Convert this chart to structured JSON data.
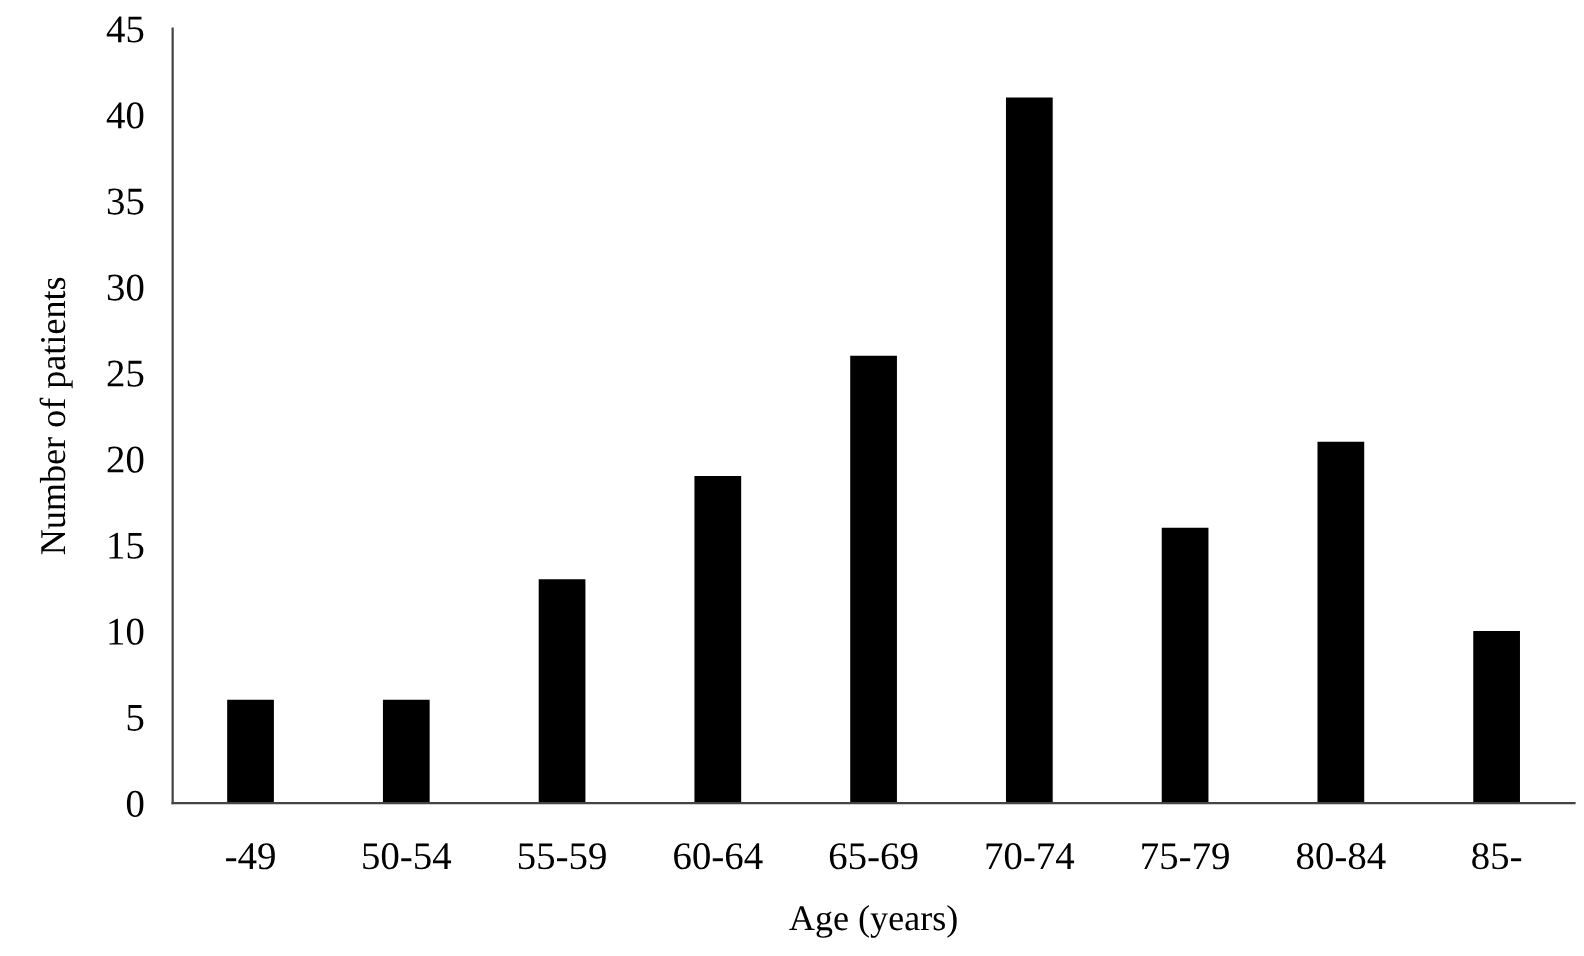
{
  "chart_data": {
    "type": "bar",
    "xlabel": "Age (years)",
    "ylabel": "Number of patients",
    "categories": [
      "-49",
      "50-54",
      "55-59",
      "60-64",
      "65-69",
      "70-74",
      "75-79",
      "80-84",
      "85-"
    ],
    "values": [
      6,
      6,
      13,
      19,
      26,
      41,
      16,
      21,
      10
    ],
    "color": "#000000",
    "ylim": [
      0,
      45
    ],
    "yticks": [
      0,
      5,
      10,
      15,
      20,
      25,
      30,
      35,
      40,
      45
    ],
    "grid": false,
    "legend": false
  }
}
